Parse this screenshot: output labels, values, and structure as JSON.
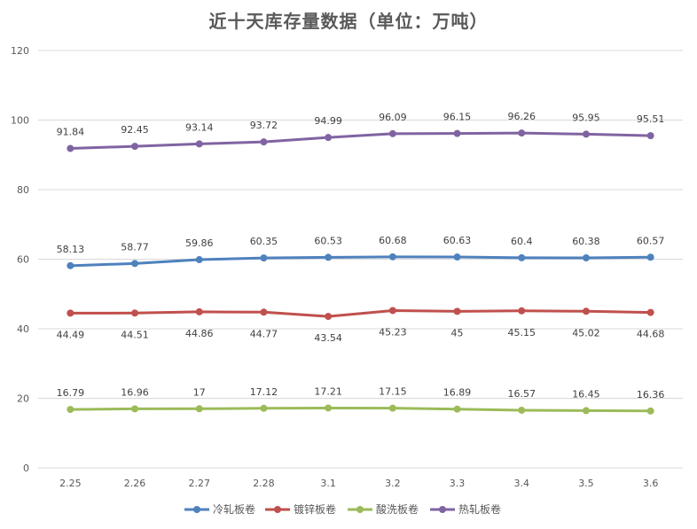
{
  "chart_data": {
    "type": "line",
    "title": "近十天库存量数据（单位：万吨）",
    "categories": [
      "2.25",
      "2.26",
      "2.27",
      "2.28",
      "3.1",
      "3.2",
      "3.3",
      "3.4",
      "3.5",
      "3.6"
    ],
    "ylim": [
      0,
      120
    ],
    "yticks": [
      "0",
      "20",
      "40",
      "60",
      "80",
      "100",
      "120"
    ],
    "grid": true,
    "legend_position": "bottom",
    "series": [
      {
        "name": "冷轧板卷",
        "color": "#4F81BD",
        "label_position": "above",
        "values": [
          58.13,
          58.77,
          59.86,
          60.35,
          60.53,
          60.68,
          60.63,
          60.4,
          60.38,
          60.57
        ],
        "labels": [
          "58.13",
          "58.77",
          "59.86",
          "60.35",
          "60.53",
          "60.68",
          "60.63",
          "60.4",
          "60.38",
          "60.57"
        ]
      },
      {
        "name": "镀锌板卷",
        "color": "#C0504D",
        "label_position": "below",
        "values": [
          44.49,
          44.51,
          44.86,
          44.77,
          43.54,
          45.23,
          45,
          45.15,
          45.02,
          44.68
        ],
        "labels": [
          "44.49",
          "44.51",
          "44.86",
          "44.77",
          "43.54",
          "45.23",
          "45",
          "45.15",
          "45.02",
          "44.68"
        ]
      },
      {
        "name": "酸洗板卷",
        "color": "#9BBB59",
        "label_position": "above",
        "values": [
          16.79,
          16.96,
          17,
          17.12,
          17.21,
          17.15,
          16.89,
          16.57,
          16.45,
          16.36
        ],
        "labels": [
          "16.79",
          "16.96",
          "17",
          "17.12",
          "17.21",
          "17.15",
          "16.89",
          "16.57",
          "16.45",
          "16.36"
        ]
      },
      {
        "name": "热轧板卷",
        "color": "#8064A2",
        "label_position": "above",
        "values": [
          91.84,
          92.45,
          93.14,
          93.72,
          94.99,
          96.09,
          96.15,
          96.26,
          95.95,
          95.51
        ],
        "labels": [
          "91.84",
          "92.45",
          "93.14",
          "93.72",
          "94.99",
          "96.09",
          "96.15",
          "96.26",
          "95.95",
          "95.51"
        ]
      }
    ]
  }
}
